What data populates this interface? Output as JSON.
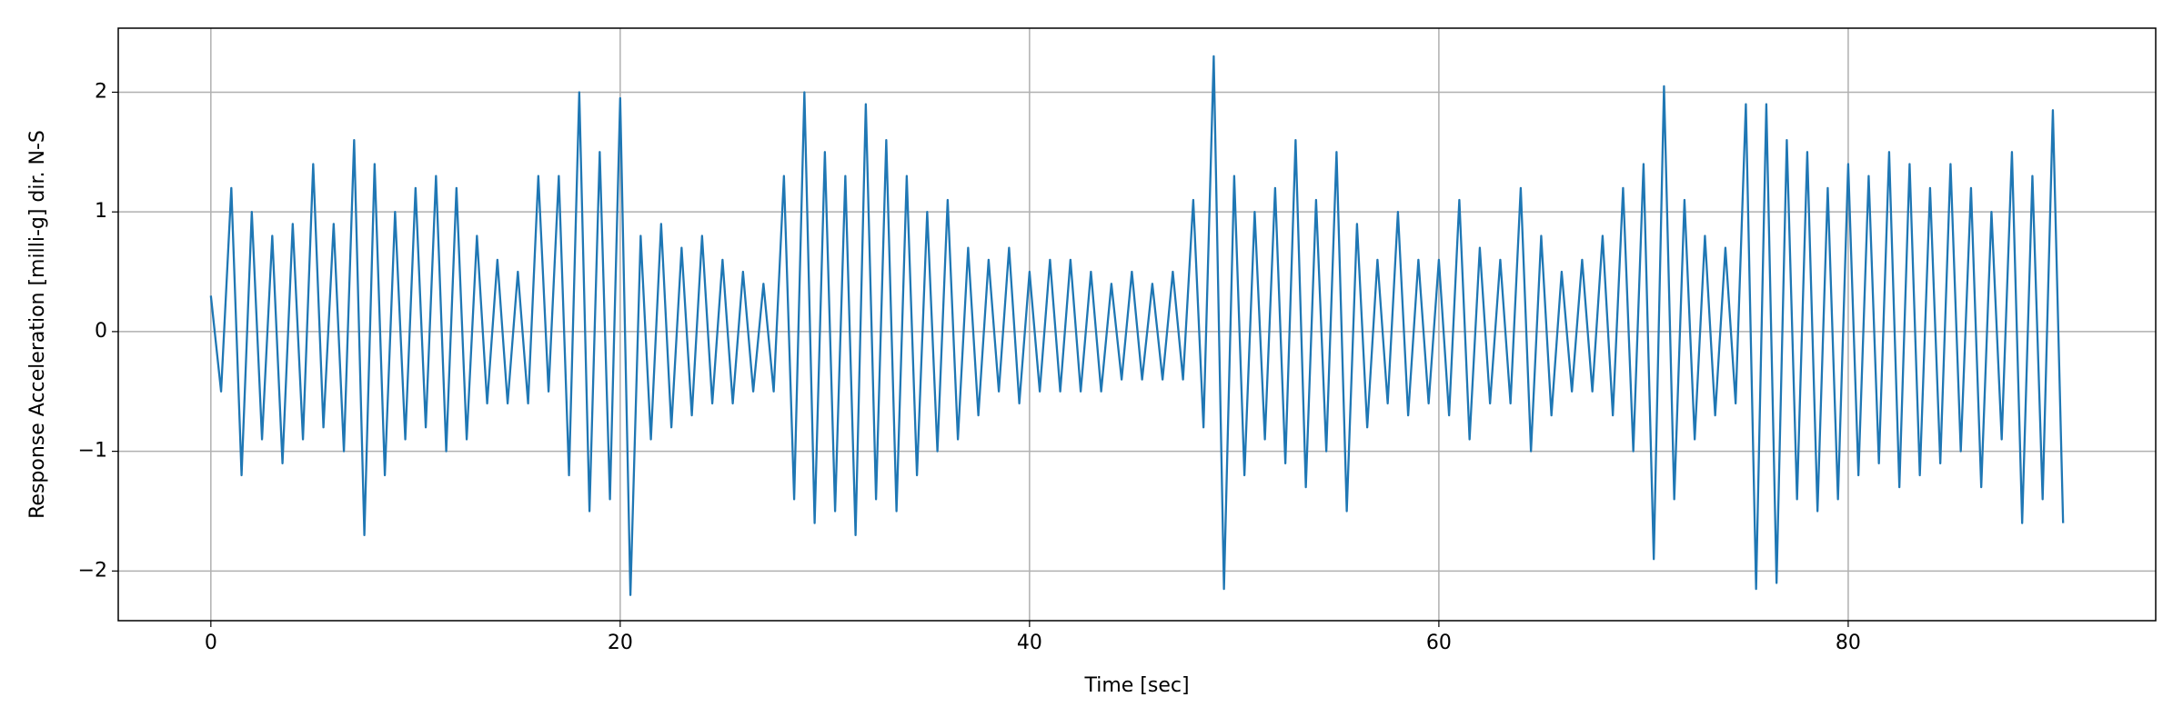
{
  "chart_data": {
    "type": "line",
    "xlabel": "Time [sec]",
    "ylabel": "Response Acceleration [milli-g] dir. N-S",
    "xlim": [
      -4.525,
      95.025
    ],
    "ylim": [
      -2.415,
      2.535
    ],
    "xticks": [
      0,
      20,
      40,
      60,
      80
    ],
    "yticks": [
      {
        "value": -2,
        "label": "−2"
      },
      {
        "value": -1,
        "label": "−1"
      },
      0,
      1,
      2
    ],
    "grid": true,
    "series": [
      {
        "color": "#1f77b4",
        "x": [
          0,
          0.5,
          1,
          1.5,
          2,
          2.5,
          3,
          3.5,
          4,
          4.5,
          5,
          5.5,
          6,
          6.5,
          7,
          7.5,
          8,
          8.5,
          9,
          9.5,
          10,
          10.5,
          11,
          11.5,
          12,
          12.5,
          13,
          13.5,
          14,
          14.5,
          15,
          15.5,
          16,
          16.5,
          17,
          17.5,
          18,
          18.5,
          19,
          19.5,
          20,
          20.5,
          21,
          21.5,
          22,
          22.5,
          23,
          23.5,
          24,
          24.5,
          25,
          25.5,
          26,
          26.5,
          27,
          27.5,
          28,
          28.5,
          29,
          29.5,
          30,
          30.5,
          31,
          31.5,
          32,
          32.5,
          33,
          33.5,
          34,
          34.5,
          35,
          35.5,
          36,
          36.5,
          37,
          37.5,
          38,
          38.5,
          39,
          39.5,
          40,
          40.5,
          41,
          41.5,
          42,
          42.5,
          43,
          43.5,
          44,
          44.5,
          45,
          45.5,
          46,
          46.5,
          47,
          47.5,
          48,
          48.5,
          49,
          49.5,
          50,
          50.5,
          51,
          51.5,
          52,
          52.5,
          53,
          53.5,
          54,
          54.5,
          55,
          55.5,
          56,
          56.5,
          57,
          57.5,
          58,
          58.5,
          59,
          59.5,
          60,
          60.5,
          61,
          61.5,
          62,
          62.5,
          63,
          63.5,
          64,
          64.5,
          65,
          65.5,
          66,
          66.5,
          67,
          67.5,
          68,
          68.5,
          69,
          69.5,
          70,
          70.5,
          71,
          71.5,
          72,
          72.5,
          73,
          73.5,
          74,
          74.5,
          75,
          75.5,
          76,
          76.5,
          77,
          77.5,
          78,
          78.5,
          79,
          79.5,
          80,
          80.5,
          81,
          81.5,
          82,
          82.5,
          83,
          83.5,
          84,
          84.5,
          85,
          85.5,
          86,
          86.5,
          87,
          87.5,
          88,
          88.5,
          89,
          89.5,
          90,
          90.5
        ],
        "values": [
          0.3,
          -0.5,
          1.2,
          -1.2,
          1.0,
          -0.9,
          0.8,
          -1.1,
          0.9,
          -0.9,
          1.4,
          -0.8,
          0.9,
          -1.0,
          1.6,
          -1.7,
          1.4,
          -1.2,
          1.0,
          -0.9,
          1.2,
          -0.8,
          1.3,
          -1.0,
          1.2,
          -0.9,
          0.8,
          -0.6,
          0.6,
          -0.6,
          0.5,
          -0.6,
          1.3,
          -0.5,
          1.3,
          -1.2,
          2.0,
          -1.5,
          1.5,
          -1.4,
          1.95,
          -2.2,
          0.8,
          -0.9,
          0.9,
          -0.8,
          0.7,
          -0.7,
          0.8,
          -0.6,
          0.6,
          -0.6,
          0.5,
          -0.5,
          0.4,
          -0.5,
          1.3,
          -1.4,
          2.0,
          -1.6,
          1.5,
          -1.5,
          1.3,
          -1.7,
          1.9,
          -1.4,
          1.6,
          -1.5,
          1.3,
          -1.2,
          1.0,
          -1.0,
          1.1,
          -0.9,
          0.7,
          -0.7,
          0.6,
          -0.5,
          0.7,
          -0.6,
          0.5,
          -0.5,
          0.6,
          -0.5,
          0.6,
          -0.5,
          0.5,
          -0.5,
          0.4,
          -0.4,
          0.5,
          -0.4,
          0.4,
          -0.4,
          0.5,
          -0.4,
          1.1,
          -0.8,
          2.3,
          -2.15,
          1.3,
          -1.2,
          1.0,
          -0.9,
          1.2,
          -1.1,
          1.6,
          -1.3,
          1.1,
          -1.0,
          1.5,
          -1.5,
          0.9,
          -0.8,
          0.6,
          -0.6,
          1.0,
          -0.7,
          0.6,
          -0.6,
          0.6,
          -0.7,
          1.1,
          -0.9,
          0.7,
          -0.6,
          0.6,
          -0.6,
          1.2,
          -1.0,
          0.8,
          -0.7,
          0.5,
          -0.5,
          0.6,
          -0.5,
          0.8,
          -0.7,
          1.2,
          -1.0,
          1.4,
          -1.9,
          2.05,
          -1.4,
          1.1,
          -0.9,
          0.8,
          -0.7,
          0.7,
          -0.6,
          1.9,
          -2.15,
          1.9,
          -2.1,
          1.6,
          -1.4,
          1.5,
          -1.5,
          1.2,
          -1.4,
          1.4,
          -1.2,
          1.3,
          -1.1,
          1.5,
          -1.3,
          1.4,
          -1.2,
          1.2,
          -1.1,
          1.4,
          -1.0,
          1.2,
          -1.3,
          1.0,
          -0.9,
          1.5,
          -1.6,
          1.3,
          -1.4,
          1.85,
          -1.6
        ]
      }
    ]
  }
}
